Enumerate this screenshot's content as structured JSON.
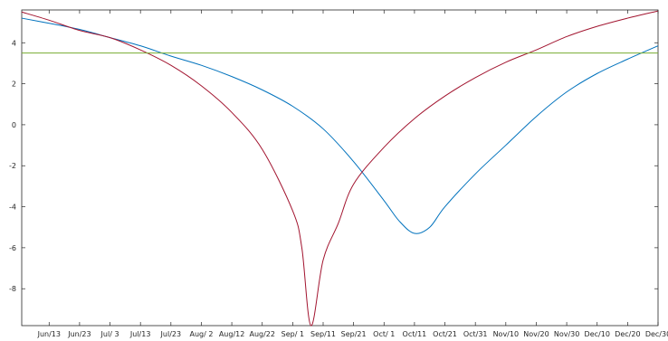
{
  "chart_data": {
    "type": "line",
    "title": "",
    "xlabel": "",
    "ylabel": "",
    "grid": false,
    "legend": "none",
    "xlim": [
      "2022-06-04",
      "2022-12-30"
    ],
    "ylim": [
      -9.8,
      5.6
    ],
    "x_ticks": [
      {
        "date": "2022-06-13",
        "label": "Jun/13"
      },
      {
        "date": "2022-06-23",
        "label": "Jun/23"
      },
      {
        "date": "2022-07-03",
        "label": "Jul/ 3"
      },
      {
        "date": "2022-07-13",
        "label": "Jul/13"
      },
      {
        "date": "2022-07-23",
        "label": "Jul/23"
      },
      {
        "date": "2022-08-02",
        "label": "Aug/ 2"
      },
      {
        "date": "2022-08-12",
        "label": "Aug/12"
      },
      {
        "date": "2022-08-22",
        "label": "Aug/22"
      },
      {
        "date": "2022-09-01",
        "label": "Sep/ 1"
      },
      {
        "date": "2022-09-11",
        "label": "Sep/11"
      },
      {
        "date": "2022-09-21",
        "label": "Sep/21"
      },
      {
        "date": "2022-10-01",
        "label": "Oct/ 1"
      },
      {
        "date": "2022-10-11",
        "label": "Oct/11"
      },
      {
        "date": "2022-10-21",
        "label": "Oct/21"
      },
      {
        "date": "2022-10-31",
        "label": "Oct/31"
      },
      {
        "date": "2022-11-10",
        "label": "Nov/10"
      },
      {
        "date": "2022-11-20",
        "label": "Nov/20"
      },
      {
        "date": "2022-11-30",
        "label": "Nov/30"
      },
      {
        "date": "2022-12-10",
        "label": "Dec/10"
      },
      {
        "date": "2022-12-20",
        "label": "Dec/20"
      },
      {
        "date": "2022-12-30",
        "label": "Dec/30"
      }
    ],
    "y_ticks": [
      {
        "value": 4,
        "label": "4"
      },
      {
        "value": 2,
        "label": "2"
      },
      {
        "value": 0,
        "label": "0"
      },
      {
        "value": -2,
        "label": "-2"
      },
      {
        "value": -4,
        "label": "-4"
      },
      {
        "value": -6,
        "label": "-6"
      },
      {
        "value": -8,
        "label": "-8"
      }
    ],
    "series": [
      {
        "color": "#0072BD",
        "points": [
          {
            "x": "2022-06-04",
            "y": 5.2
          },
          {
            "x": "2022-06-13",
            "y": 4.95
          },
          {
            "x": "2022-06-23",
            "y": 4.65
          },
          {
            "x": "2022-07-03",
            "y": 4.25
          },
          {
            "x": "2022-07-13",
            "y": 3.85
          },
          {
            "x": "2022-07-23",
            "y": 3.35
          },
          {
            "x": "2022-08-02",
            "y": 2.9
          },
          {
            "x": "2022-08-12",
            "y": 2.35
          },
          {
            "x": "2022-08-22",
            "y": 1.7
          },
          {
            "x": "2022-09-01",
            "y": 0.9
          },
          {
            "x": "2022-09-11",
            "y": -0.2
          },
          {
            "x": "2022-09-21",
            "y": -1.8
          },
          {
            "x": "2022-10-01",
            "y": -3.7
          },
          {
            "x": "2022-10-06",
            "y": -4.7
          },
          {
            "x": "2022-10-11",
            "y": -5.3
          },
          {
            "x": "2022-10-16",
            "y": -5.0
          },
          {
            "x": "2022-10-21",
            "y": -4.0
          },
          {
            "x": "2022-10-31",
            "y": -2.4
          },
          {
            "x": "2022-11-10",
            "y": -1.0
          },
          {
            "x": "2022-11-20",
            "y": 0.4
          },
          {
            "x": "2022-11-30",
            "y": 1.6
          },
          {
            "x": "2022-12-10",
            "y": 2.5
          },
          {
            "x": "2022-12-20",
            "y": 3.2
          },
          {
            "x": "2022-12-30",
            "y": 3.85
          }
        ]
      },
      {
        "color": "#A2142F",
        "points": [
          {
            "x": "2022-06-04",
            "y": 5.5
          },
          {
            "x": "2022-06-13",
            "y": 5.1
          },
          {
            "x": "2022-06-23",
            "y": 4.6
          },
          {
            "x": "2022-07-03",
            "y": 4.25
          },
          {
            "x": "2022-07-13",
            "y": 3.65
          },
          {
            "x": "2022-07-23",
            "y": 2.9
          },
          {
            "x": "2022-08-02",
            "y": 1.9
          },
          {
            "x": "2022-08-12",
            "y": 0.6
          },
          {
            "x": "2022-08-22",
            "y": -1.2
          },
          {
            "x": "2022-09-01",
            "y": -4.2
          },
          {
            "x": "2022-09-04",
            "y": -6.0
          },
          {
            "x": "2022-09-07",
            "y": -9.8
          },
          {
            "x": "2022-09-11",
            "y": -6.6
          },
          {
            "x": "2022-09-16",
            "y": -4.8
          },
          {
            "x": "2022-09-21",
            "y": -2.9
          },
          {
            "x": "2022-10-01",
            "y": -1.1
          },
          {
            "x": "2022-10-11",
            "y": 0.3
          },
          {
            "x": "2022-10-21",
            "y": 1.4
          },
          {
            "x": "2022-10-31",
            "y": 2.3
          },
          {
            "x": "2022-11-10",
            "y": 3.05
          },
          {
            "x": "2022-11-20",
            "y": 3.65
          },
          {
            "x": "2022-11-30",
            "y": 4.3
          },
          {
            "x": "2022-12-10",
            "y": 4.8
          },
          {
            "x": "2022-12-20",
            "y": 5.2
          },
          {
            "x": "2022-12-30",
            "y": 5.55
          }
        ]
      },
      {
        "color": "#77AC30",
        "points": [
          {
            "x": "2022-06-04",
            "y": 3.5
          },
          {
            "x": "2022-12-30",
            "y": 3.5
          }
        ]
      }
    ]
  }
}
